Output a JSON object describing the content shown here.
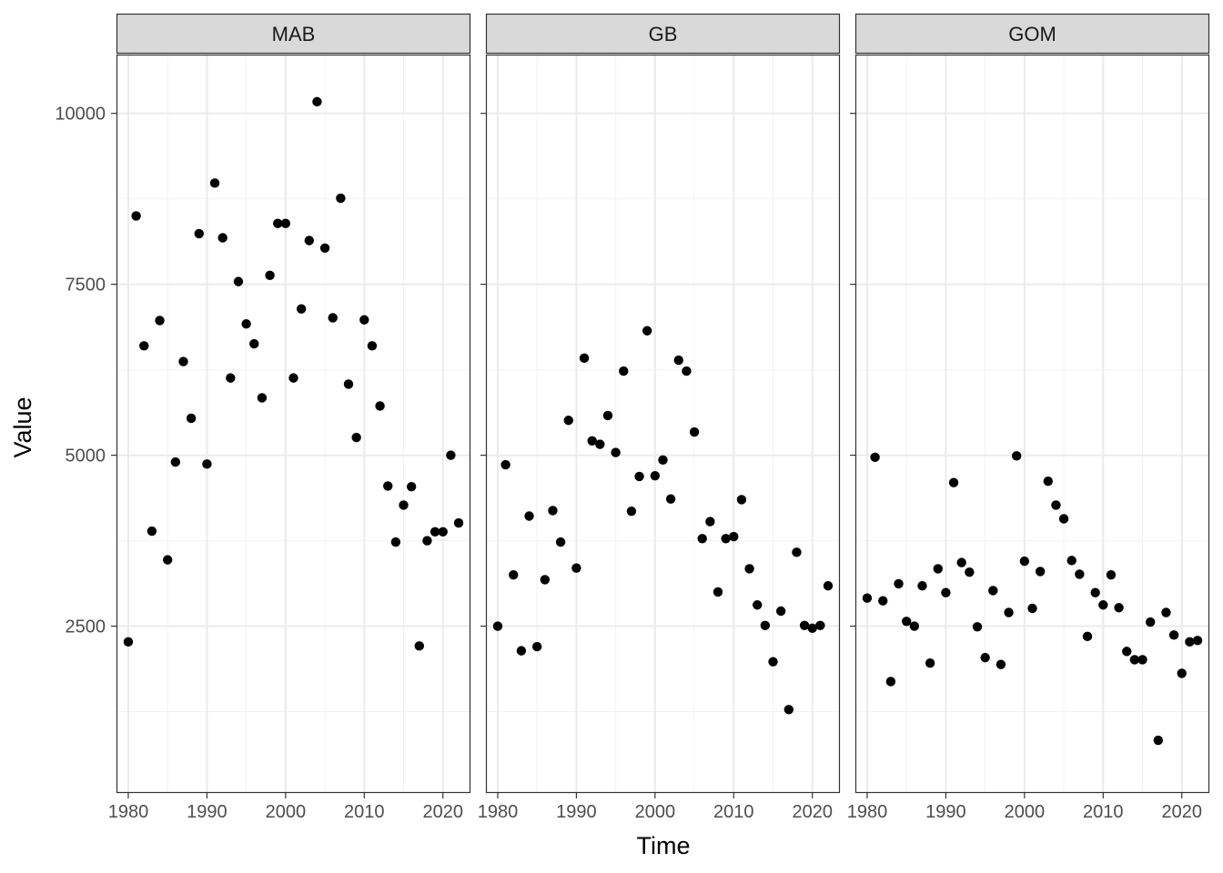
{
  "chart_data": {
    "type": "scatter",
    "xlabel": "Time",
    "ylabel": "Value",
    "xlim": [
      1978.5,
      2023.5
    ],
    "ylim": [
      60,
      10860
    ],
    "x_ticks": [
      1980,
      1990,
      2000,
      2010,
      2020
    ],
    "x_tick_labels": [
      "1980",
      "1990",
      "2000",
      "2010",
      "2020"
    ],
    "y_ticks": [
      2500,
      5000,
      7500,
      10000
    ],
    "y_tick_labels": [
      "2500",
      "5000",
      "7500",
      "10000"
    ],
    "grid": true,
    "legend": "none",
    "panels": [
      {
        "name": "MAB",
        "x": [
          1980,
          1981,
          1982,
          1983,
          1984,
          1985,
          1986,
          1987,
          1988,
          1989,
          1990,
          1991,
          1992,
          1993,
          1994,
          1995,
          1996,
          1997,
          1998,
          1999,
          2000,
          2001,
          2002,
          2003,
          2004,
          2005,
          2006,
          2007,
          2008,
          2009,
          2010,
          2011,
          2012,
          2013,
          2014,
          2015,
          2016,
          2017,
          2018,
          2019,
          2020,
          2021,
          2022
        ],
        "y": [
          2270,
          8500,
          6600,
          3890,
          6970,
          3470,
          4900,
          6370,
          5540,
          8240,
          4870,
          8980,
          8180,
          6130,
          7540,
          6920,
          6630,
          5840,
          7630,
          8390,
          8390,
          6130,
          7140,
          8140,
          10170,
          8030,
          7010,
          8760,
          6040,
          5260,
          6980,
          6600,
          5720,
          4550,
          3730,
          4270,
          4540,
          2210,
          3750,
          3880,
          3880,
          5000,
          4010
        ]
      },
      {
        "name": "GB",
        "x": [
          1980,
          1981,
          1982,
          1983,
          1984,
          1985,
          1986,
          1987,
          1988,
          1989,
          1990,
          1991,
          1992,
          1993,
          1994,
          1995,
          1996,
          1997,
          1998,
          1999,
          2000,
          2001,
          2002,
          2003,
          2004,
          2005,
          2006,
          2007,
          2008,
          2009,
          2010,
          2011,
          2012,
          2013,
          2014,
          2015,
          2016,
          2017,
          2018,
          2019,
          2020,
          2021,
          2022
        ],
        "y": [
          2500,
          4860,
          3250,
          2140,
          4110,
          2200,
          3180,
          4190,
          3730,
          5510,
          3350,
          6420,
          5210,
          5160,
          5580,
          5040,
          6230,
          4180,
          4690,
          6820,
          4700,
          4930,
          4360,
          6390,
          6230,
          5340,
          3780,
          4030,
          3000,
          3780,
          3810,
          4350,
          3340,
          2810,
          2510,
          1980,
          2720,
          1280,
          3580,
          2510,
          2470,
          2510,
          3090
        ]
      },
      {
        "name": "GOM",
        "x": [
          1980,
          1981,
          1982,
          1983,
          1984,
          1985,
          1986,
          1987,
          1988,
          1989,
          1990,
          1991,
          1992,
          1993,
          1994,
          1995,
          1996,
          1997,
          1998,
          1999,
          2000,
          2001,
          2002,
          2003,
          2004,
          2005,
          2006,
          2007,
          2008,
          2009,
          2010,
          2011,
          2012,
          2013,
          2014,
          2015,
          2016,
          2017,
          2018,
          2019,
          2020,
          2021,
          2022
        ],
        "y": [
          2910,
          4970,
          2870,
          1690,
          3120,
          2570,
          2500,
          3090,
          1960,
          3340,
          2990,
          4600,
          3430,
          3290,
          2490,
          2040,
          3020,
          1940,
          2700,
          4990,
          3450,
          2760,
          3300,
          4620,
          4270,
          4070,
          3460,
          3260,
          2350,
          2990,
          2810,
          3250,
          2770,
          2130,
          2010,
          2010,
          2560,
          830,
          2700,
          2370,
          1810,
          2270,
          2290
        ]
      }
    ]
  }
}
